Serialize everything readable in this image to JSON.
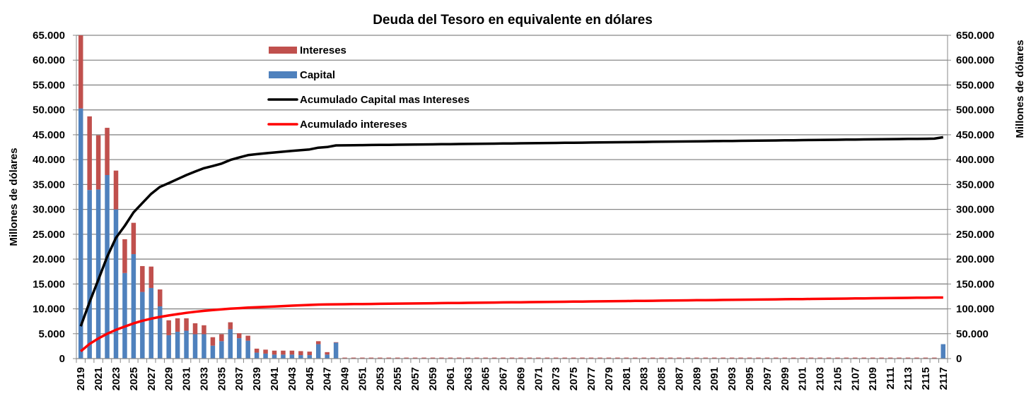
{
  "chart_data": {
    "type": "bar",
    "subtype": "stacked bar with cumulative lines on secondary axis",
    "title": "Deuda del Tesoro en equivalente en dólares",
    "ylabel": "Millones de dólares",
    "y2label": "Millones de dólares",
    "ylim": [
      0,
      65000
    ],
    "y2lim": [
      0,
      650000
    ],
    "yticks": [
      "0",
      "5.000",
      "10.000",
      "15.000",
      "20.000",
      "25.000",
      "30.000",
      "35.000",
      "40.000",
      "45.000",
      "50.000",
      "55.000",
      "60.000",
      "65.000"
    ],
    "y2ticks": [
      "0",
      "50.000",
      "100.000",
      "150.000",
      "200.000",
      "250.000",
      "300.000",
      "350.000",
      "400.000",
      "450.000",
      "500.000",
      "550.000",
      "600.000",
      "650.000"
    ],
    "grid": true,
    "legend_placement": "top-left inside",
    "years": [
      2019,
      2020,
      2021,
      2022,
      2023,
      2024,
      2025,
      2026,
      2027,
      2028,
      2029,
      2030,
      2031,
      2032,
      2033,
      2034,
      2035,
      2036,
      2037,
      2038,
      2039,
      2040,
      2041,
      2042,
      2043,
      2044,
      2045,
      2046,
      2047,
      2048,
      2049,
      2050,
      2051,
      2052,
      2053,
      2054,
      2055,
      2056,
      2057,
      2058,
      2059,
      2060,
      2061,
      2062,
      2063,
      2064,
      2065,
      2066,
      2067,
      2068,
      2069,
      2070,
      2071,
      2072,
      2073,
      2074,
      2075,
      2076,
      2077,
      2078,
      2079,
      2080,
      2081,
      2082,
      2083,
      2084,
      2085,
      2086,
      2087,
      2088,
      2089,
      2090,
      2091,
      2092,
      2093,
      2094,
      2095,
      2096,
      2097,
      2098,
      2099,
      2100,
      2101,
      2102,
      2103,
      2104,
      2105,
      2106,
      2107,
      2108,
      2109,
      2110,
      2111,
      2112,
      2113,
      2114,
      2115,
      2116,
      2117
    ],
    "series": [
      {
        "name": "Capital",
        "type": "bar",
        "axis": "left",
        "color": "#4F81BD",
        "values": [
          50300,
          33900,
          34000,
          36900,
          30000,
          17200,
          21000,
          13400,
          14200,
          10500,
          4700,
          5400,
          5600,
          4900,
          4900,
          2600,
          3500,
          5900,
          4100,
          3600,
          1200,
          1000,
          800,
          800,
          800,
          700,
          700,
          2900,
          800,
          3200,
          0,
          0,
          0,
          0,
          0,
          0,
          0,
          0,
          0,
          0,
          0,
          0,
          0,
          0,
          0,
          0,
          0,
          0,
          0,
          0,
          0,
          0,
          0,
          0,
          0,
          0,
          0,
          0,
          0,
          0,
          0,
          0,
          0,
          0,
          0,
          0,
          0,
          0,
          0,
          0,
          0,
          0,
          0,
          0,
          0,
          0,
          0,
          0,
          0,
          0,
          0,
          0,
          0,
          0,
          0,
          0,
          0,
          0,
          0,
          0,
          0,
          0,
          0,
          0,
          0,
          0,
          0,
          0,
          2900
        ]
      },
      {
        "name": "Intereses",
        "type": "bar",
        "axis": "left",
        "color": "#C0504D",
        "values": [
          14700,
          14800,
          10900,
          9500,
          7800,
          6800,
          6300,
          5200,
          4300,
          3400,
          3000,
          2700,
          2500,
          2200,
          1800,
          1700,
          1400,
          1400,
          1000,
          1000,
          800,
          800,
          800,
          800,
          800,
          800,
          700,
          600,
          500,
          100,
          200,
          200,
          200,
          200,
          200,
          200,
          200,
          200,
          200,
          200,
          200,
          200,
          200,
          200,
          200,
          200,
          200,
          200,
          200,
          200,
          200,
          200,
          200,
          200,
          200,
          200,
          200,
          200,
          200,
          200,
          200,
          200,
          200,
          200,
          200,
          200,
          200,
          200,
          200,
          200,
          200,
          200,
          200,
          200,
          200,
          200,
          200,
          200,
          200,
          200,
          200,
          200,
          200,
          200,
          200,
          200,
          200,
          200,
          200,
          200,
          200,
          200,
          200,
          200,
          200,
          200,
          200,
          200,
          0
        ]
      },
      {
        "name": "Acumulado Capital mas Intereses",
        "type": "line",
        "axis": "right",
        "color": "#000000",
        "values": [
          65000,
          113700,
          158600,
          205000,
          242800,
          266800,
          294100,
          312700,
          331200,
          345100,
          352800,
          360900,
          369000,
          376100,
          382800,
          387100,
          392000,
          399300,
          404400,
          409000,
          411000,
          412800,
          414400,
          416000,
          417600,
          419100,
          420500,
          424000,
          425300,
          428600,
          428800,
          429000,
          429200,
          429400,
          429600,
          429800,
          430000,
          430200,
          430400,
          430600,
          430800,
          431000,
          431200,
          431400,
          431600,
          431800,
          432000,
          432200,
          432400,
          432600,
          432800,
          433000,
          433200,
          433400,
          433600,
          433800,
          434000,
          434200,
          434400,
          434600,
          434800,
          435000,
          435200,
          435400,
          435600,
          435800,
          436000,
          436200,
          436400,
          436600,
          436800,
          437000,
          437200,
          437400,
          437600,
          437800,
          438000,
          438200,
          438400,
          438600,
          438800,
          439000,
          439200,
          439400,
          439600,
          439800,
          440000,
          440200,
          440400,
          440600,
          440800,
          441000,
          441200,
          441400,
          441600,
          441800,
          442000,
          442200,
          445100
        ]
      },
      {
        "name": "Acumulado intereses",
        "type": "line",
        "axis": "right",
        "color": "#FF0000",
        "values": [
          14700,
          29500,
          40400,
          49900,
          57700,
          64500,
          70800,
          76000,
          80300,
          83700,
          86700,
          89400,
          91900,
          94100,
          95900,
          97600,
          99000,
          100400,
          101400,
          102400,
          103200,
          104000,
          104800,
          105600,
          106400,
          107200,
          107900,
          108500,
          109000,
          109100,
          109300,
          109500,
          109700,
          109900,
          110100,
          110300,
          110500,
          110700,
          110900,
          111100,
          111300,
          111500,
          111700,
          111900,
          112100,
          112300,
          112500,
          112700,
          112900,
          113100,
          113300,
          113500,
          113700,
          113900,
          114100,
          114300,
          114500,
          114700,
          114900,
          115100,
          115300,
          115500,
          115700,
          115900,
          116100,
          116300,
          116500,
          116700,
          116900,
          117100,
          117300,
          117500,
          117700,
          117900,
          118100,
          118300,
          118500,
          118700,
          118900,
          119100,
          119300,
          119500,
          119700,
          119900,
          120100,
          120300,
          120500,
          120700,
          120900,
          121100,
          121300,
          121500,
          121700,
          121900,
          122100,
          122300,
          122500,
          122700,
          122700
        ]
      }
    ],
    "legend": [
      "Intereses",
      "Capital",
      "Acumulado Capital mas Intereses",
      "Acumulado intereses"
    ]
  }
}
